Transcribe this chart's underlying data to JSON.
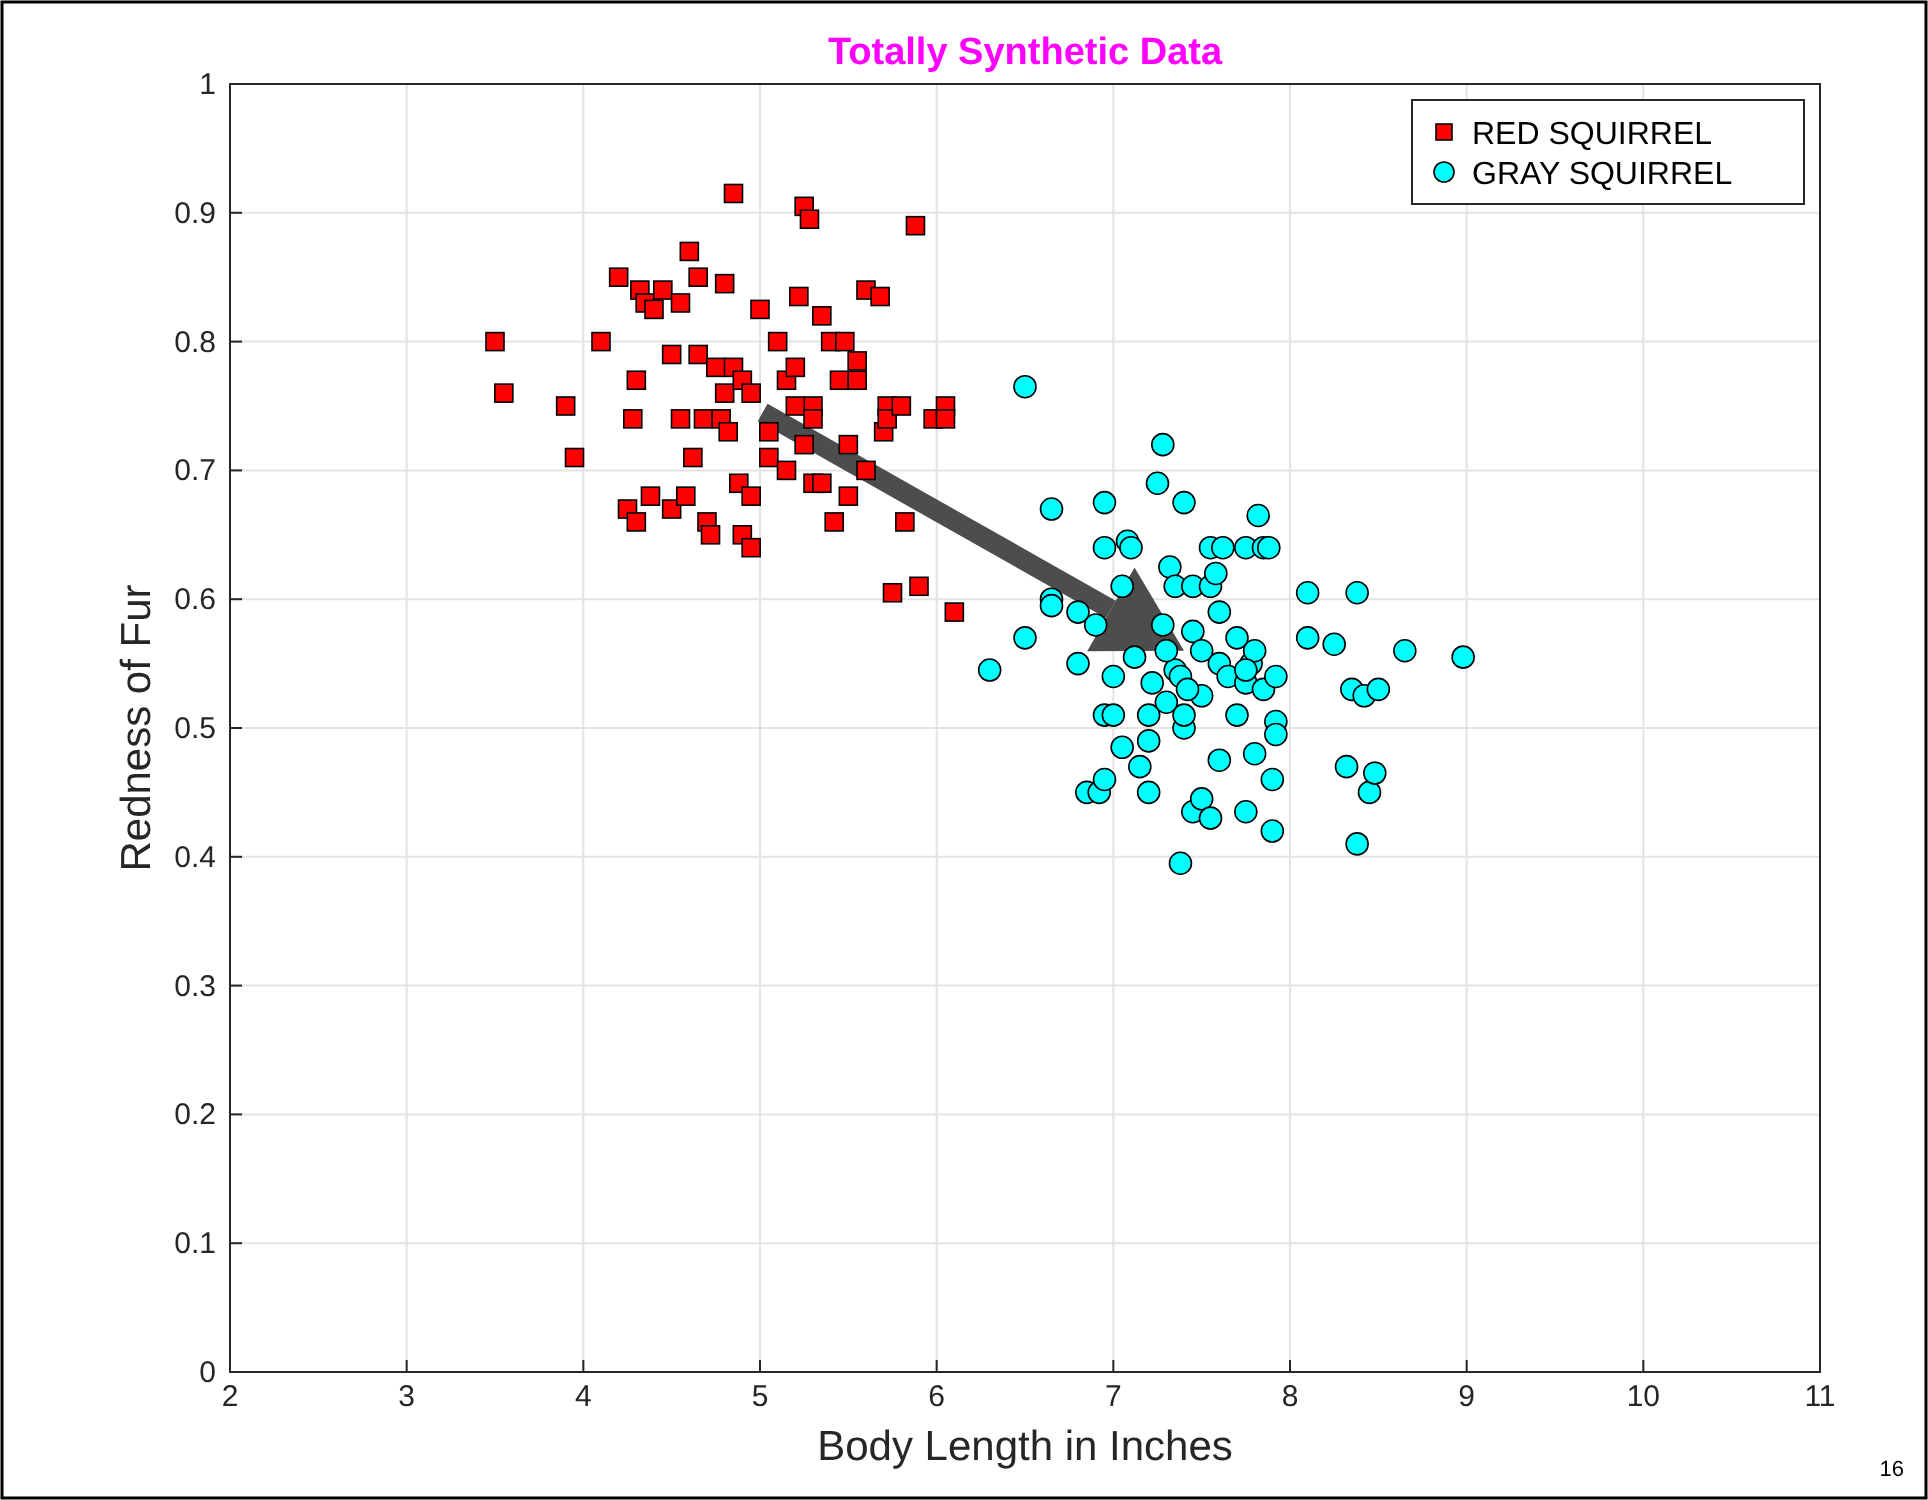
{
  "chart_data": {
    "type": "scatter",
    "title": "Totally Synthetic Data",
    "xlabel": "Body Length in Inches",
    "ylabel": "Redness of Fur",
    "xlim": [
      2,
      11
    ],
    "xticks": [
      2,
      3,
      4,
      5,
      6,
      7,
      8,
      9,
      10,
      11
    ],
    "ylim": [
      0,
      1
    ],
    "yticks": [
      0,
      0.1,
      0.2,
      0.3,
      0.4,
      0.5,
      0.6,
      0.7,
      0.8,
      0.9,
      1
    ],
    "grid": true,
    "legend": "top right",
    "annotations": [
      "16"
    ],
    "series": [
      {
        "name": "RED SQUIRREL",
        "color": "#ff0000",
        "marker": "square",
        "x": [
          3.5,
          3.55,
          3.9,
          3.95,
          4.1,
          4.2,
          4.25,
          4.28,
          4.3,
          4.3,
          4.32,
          4.35,
          4.38,
          4.4,
          4.45,
          4.5,
          4.5,
          4.55,
          4.55,
          4.58,
          4.6,
          4.62,
          4.65,
          4.65,
          4.68,
          4.7,
          4.72,
          4.75,
          4.78,
          4.8,
          4.8,
          4.82,
          4.85,
          4.85,
          4.88,
          4.9,
          4.9,
          4.95,
          4.95,
          4.95,
          5.0,
          5.05,
          5.05,
          5.1,
          5.15,
          5.15,
          5.2,
          5.22,
          5.25,
          5.25,
          5.28,
          5.3,
          5.3,
          5.35,
          5.35,
          5.4,
          5.42,
          5.45,
          5.48,
          5.5,
          5.5,
          5.55,
          5.55,
          5.6,
          5.6,
          5.68,
          5.7,
          5.72,
          5.72,
          5.75,
          5.8,
          5.82,
          5.88,
          5.9,
          5.98,
          6.05,
          6.05,
          6.1,
          5.2,
          5.3
        ],
        "values": [
          0.8,
          0.76,
          0.75,
          0.71,
          0.8,
          0.85,
          0.67,
          0.74,
          0.77,
          0.66,
          0.84,
          0.83,
          0.68,
          0.825,
          0.84,
          0.79,
          0.67,
          0.74,
          0.83,
          0.68,
          0.87,
          0.71,
          0.85,
          0.79,
          0.74,
          0.66,
          0.65,
          0.78,
          0.74,
          0.845,
          0.76,
          0.73,
          0.915,
          0.78,
          0.69,
          0.65,
          0.77,
          0.64,
          0.68,
          0.76,
          0.825,
          0.71,
          0.73,
          0.8,
          0.77,
          0.7,
          0.78,
          0.835,
          0.905,
          0.72,
          0.895,
          0.75,
          0.69,
          0.82,
          0.69,
          0.8,
          0.66,
          0.77,
          0.8,
          0.68,
          0.72,
          0.785,
          0.77,
          0.84,
          0.7,
          0.835,
          0.73,
          0.75,
          0.74,
          0.605,
          0.75,
          0.66,
          0.89,
          0.61,
          0.74,
          0.75,
          0.74,
          0.59,
          0.75,
          0.74
        ]
      },
      {
        "name": "GRAY SQUIRREL",
        "color": "#00ffff",
        "marker": "circle",
        "x": [
          6.5,
          7.28,
          6.3,
          6.5,
          6.65,
          6.65,
          6.65,
          6.8,
          6.8,
          6.85,
          6.9,
          6.92,
          6.95,
          6.95,
          6.95,
          6.95,
          7.0,
          7.0,
          7.05,
          7.05,
          7.08,
          7.1,
          7.12,
          7.15,
          7.2,
          7.2,
          7.2,
          7.22,
          7.25,
          7.28,
          7.3,
          7.32,
          7.35,
          7.35,
          7.38,
          7.38,
          7.4,
          7.4,
          7.4,
          7.45,
          7.45,
          7.45,
          7.5,
          7.5,
          7.5,
          7.55,
          7.55,
          7.55,
          7.58,
          7.6,
          7.6,
          7.6,
          7.62,
          7.65,
          7.7,
          7.7,
          7.75,
          7.75,
          7.75,
          7.78,
          7.8,
          7.8,
          7.82,
          7.85,
          7.85,
          7.88,
          7.9,
          7.9,
          7.92,
          7.92,
          7.92,
          8.1,
          8.1,
          8.25,
          8.32,
          8.35,
          8.38,
          8.38,
          8.42,
          8.45,
          8.48,
          8.5,
          8.65,
          8.98,
          7.75,
          7.3,
          7.42
        ],
        "values": [
          0.765,
          0.72,
          0.545,
          0.57,
          0.67,
          0.6,
          0.595,
          0.59,
          0.55,
          0.45,
          0.58,
          0.45,
          0.675,
          0.64,
          0.51,
          0.46,
          0.54,
          0.51,
          0.61,
          0.485,
          0.645,
          0.64,
          0.555,
          0.47,
          0.51,
          0.45,
          0.49,
          0.535,
          0.69,
          0.58,
          0.52,
          0.625,
          0.61,
          0.545,
          0.54,
          0.395,
          0.5,
          0.51,
          0.675,
          0.61,
          0.575,
          0.435,
          0.56,
          0.525,
          0.445,
          0.43,
          0.64,
          0.61,
          0.62,
          0.59,
          0.55,
          0.475,
          0.64,
          0.54,
          0.57,
          0.51,
          0.64,
          0.535,
          0.435,
          0.55,
          0.48,
          0.56,
          0.665,
          0.64,
          0.53,
          0.64,
          0.46,
          0.42,
          0.54,
          0.505,
          0.495,
          0.605,
          0.57,
          0.565,
          0.47,
          0.53,
          0.605,
          0.41,
          0.525,
          0.45,
          0.465,
          0.53,
          0.56,
          0.555,
          0.545,
          0.56,
          0.53
        ]
      }
    ]
  }
}
